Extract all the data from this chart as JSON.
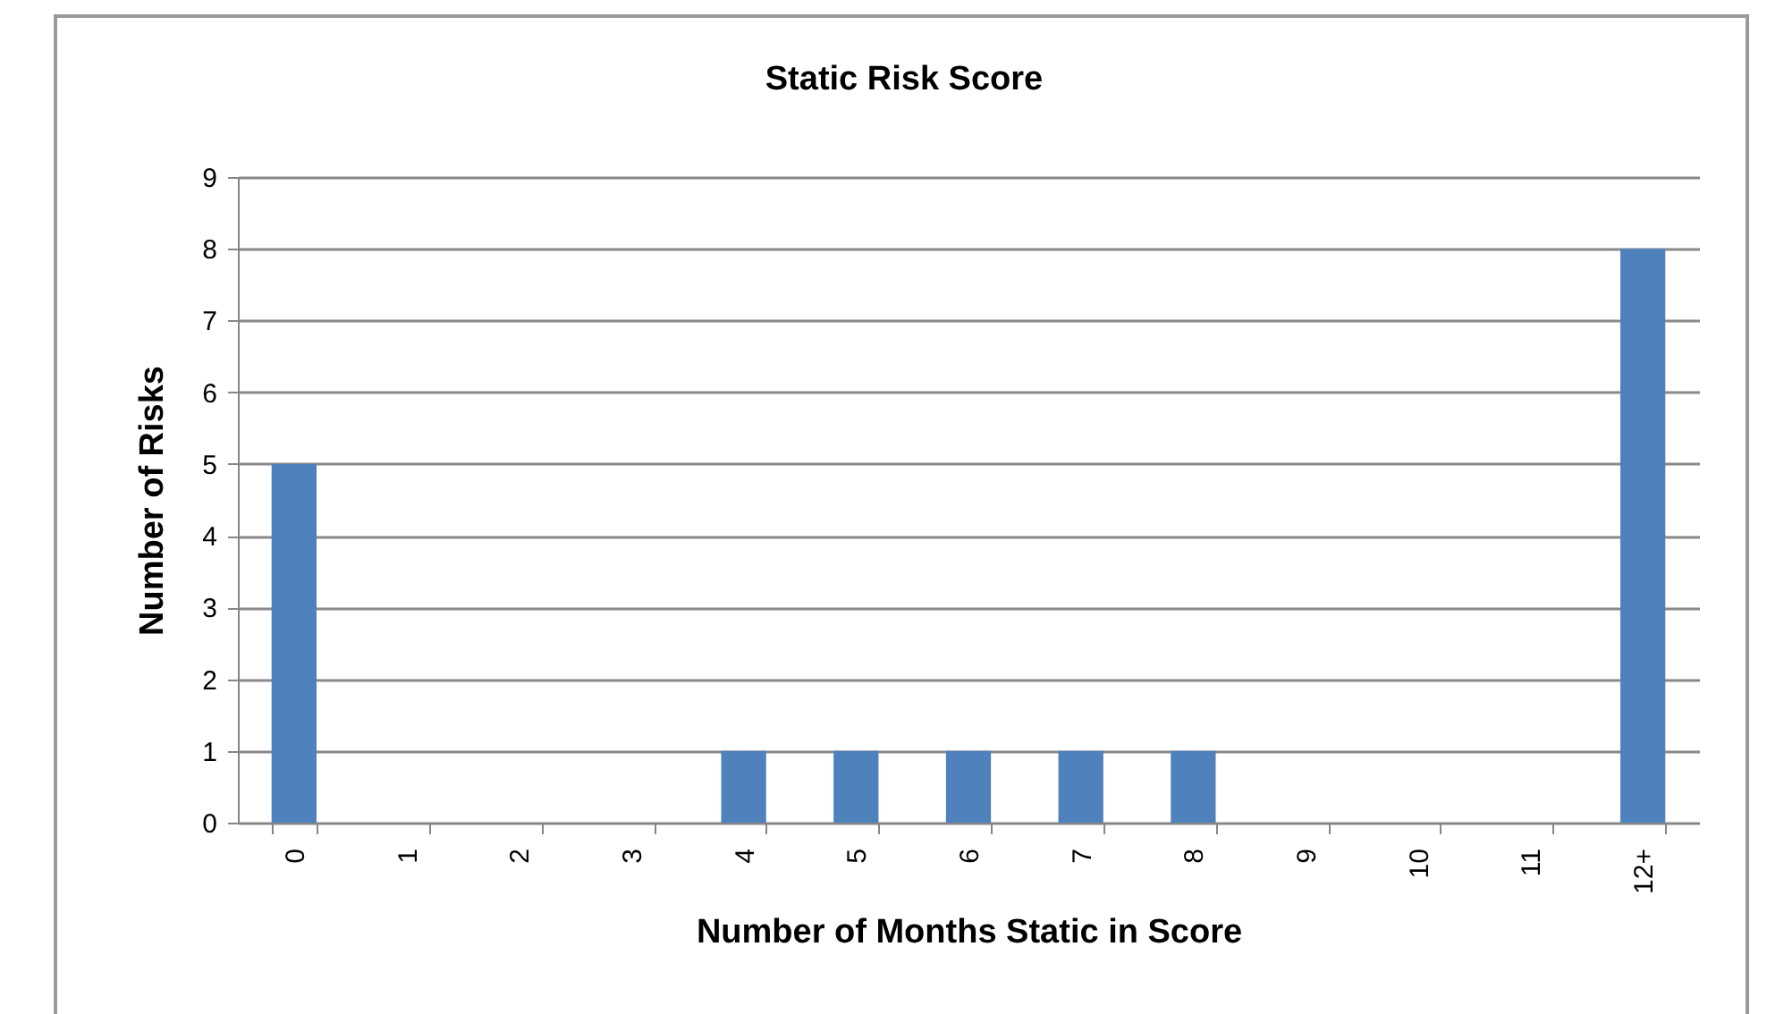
{
  "chart_data": {
    "type": "bar",
    "title": "Static Risk Score",
    "xlabel": "Number of Months Static in Score",
    "ylabel": "Number of Risks",
    "categories": [
      "0",
      "1",
      "2",
      "3",
      "4",
      "5",
      "6",
      "7",
      "8",
      "9",
      "10",
      "11",
      "12+"
    ],
    "values": [
      5,
      0,
      0,
      0,
      1,
      1,
      1,
      1,
      1,
      0,
      0,
      0,
      8
    ],
    "color": "#4f81bd",
    "ylim": [
      0,
      9
    ],
    "yticks": [
      0,
      1,
      2,
      3,
      4,
      5,
      6,
      7,
      8,
      9
    ],
    "grid": "y"
  }
}
